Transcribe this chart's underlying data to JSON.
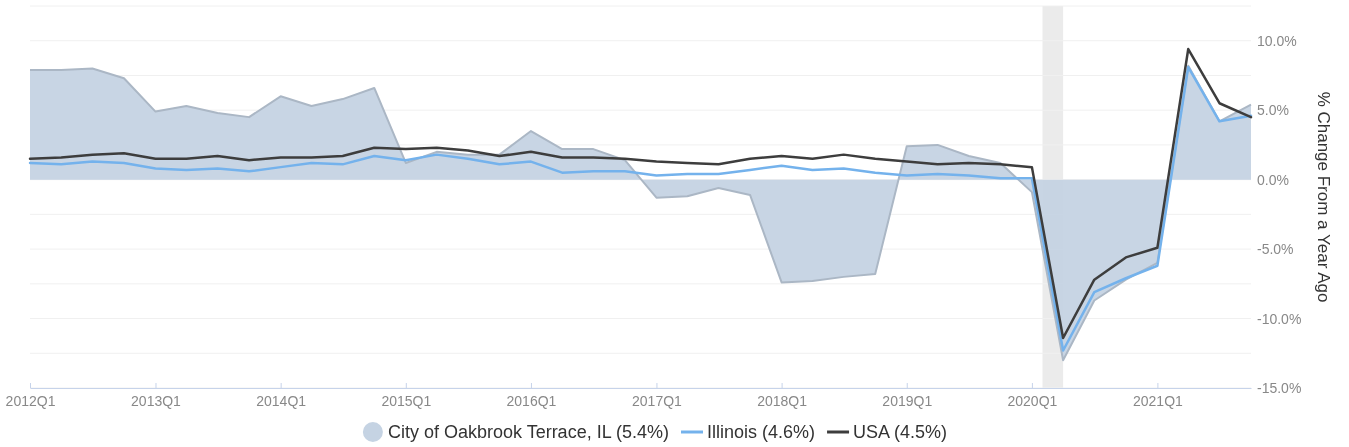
{
  "chart_data": {
    "type": "line",
    "ylabel": "% Change From a Year Ago",
    "x": [
      "2012-01",
      "2012-04",
      "2012-07",
      "2012-10",
      "2013-01",
      "2013-04",
      "2013-07",
      "2013-10",
      "2014-01",
      "2014-04",
      "2014-07",
      "2014-10",
      "2015-01",
      "2015-04",
      "2015-07",
      "2015-10",
      "2016-01",
      "2016-04",
      "2016-07",
      "2016-10",
      "2017-01",
      "2017-04",
      "2017-07",
      "2017-10",
      "2018-01",
      "2018-04",
      "2018-07",
      "2018-10",
      "2019-01",
      "2019-04",
      "2019-07",
      "2019-10",
      "2020-01",
      "2020-04",
      "2020-07",
      "2020-10",
      "2021-01",
      "2021-04",
      "2021-07",
      "2021-10"
    ],
    "series": [
      {
        "name": "City of Oakbrook Terrace, IL (5.4%)",
        "type": "area",
        "color": "#c5d3e3",
        "values": [
          7.9,
          7.9,
          8.0,
          7.3,
          4.9,
          5.3,
          4.8,
          4.5,
          6.0,
          5.3,
          5.8,
          6.6,
          1.2,
          2.0,
          1.8,
          1.8,
          3.5,
          2.2,
          2.2,
          1.4,
          -1.3,
          -1.2,
          -0.6,
          -1.1,
          -7.4,
          -7.3,
          -7.0,
          -6.8,
          2.4,
          2.5,
          1.7,
          1.2,
          -0.9,
          -13.0,
          -8.7,
          -7.2,
          -6.0,
          8.2,
          4.2,
          5.4
        ]
      },
      {
        "name": "Illinois (4.6%)",
        "color": "#74b2ec",
        "values": [
          1.2,
          1.1,
          1.3,
          1.2,
          0.8,
          0.7,
          0.8,
          0.6,
          0.9,
          1.2,
          1.1,
          1.7,
          1.4,
          1.8,
          1.5,
          1.1,
          1.3,
          0.5,
          0.6,
          0.6,
          0.3,
          0.4,
          0.4,
          0.7,
          1.0,
          0.7,
          0.8,
          0.5,
          0.3,
          0.4,
          0.3,
          0.1,
          0.1,
          -12.3,
          -8.1,
          -7.1,
          -6.2,
          8.1,
          4.2,
          4.6
        ]
      },
      {
        "name": "USA (4.5%)",
        "color": "#3d3d3d",
        "values": [
          1.5,
          1.6,
          1.8,
          1.9,
          1.5,
          1.5,
          1.7,
          1.4,
          1.6,
          1.6,
          1.7,
          2.3,
          2.2,
          2.3,
          2.1,
          1.7,
          2.0,
          1.6,
          1.6,
          1.5,
          1.3,
          1.2,
          1.1,
          1.5,
          1.7,
          1.5,
          1.8,
          1.5,
          1.3,
          1.1,
          1.2,
          1.1,
          0.9,
          -11.4,
          -7.2,
          -5.6,
          -4.9,
          9.4,
          5.5,
          4.5
        ]
      }
    ],
    "xlim": [
      "2012-01",
      "2021-10"
    ],
    "xticks": [
      {
        "value": "2012-01",
        "label": "2012Q1"
      },
      {
        "value": "2013-01",
        "label": "2013Q1"
      },
      {
        "value": "2014-01",
        "label": "2014Q1"
      },
      {
        "value": "2015-01",
        "label": "2015Q1"
      },
      {
        "value": "2016-01",
        "label": "2016Q1"
      },
      {
        "value": "2017-01",
        "label": "2017Q1"
      },
      {
        "value": "2018-01",
        "label": "2018Q1"
      },
      {
        "value": "2019-01",
        "label": "2019Q1"
      },
      {
        "value": "2020-01",
        "label": "2020Q1"
      },
      {
        "value": "2021-01",
        "label": "2021Q1"
      }
    ],
    "ylim": [
      -15,
      12.5
    ],
    "yticks": [
      {
        "value": -15,
        "label": "-15.0%"
      },
      {
        "value": -12.5,
        "label": null
      },
      {
        "value": -10,
        "label": "-10.0%"
      },
      {
        "value": -7.5,
        "label": null
      },
      {
        "value": -5,
        "label": "-5.0%"
      },
      {
        "value": -2.5,
        "label": null
      },
      {
        "value": 0,
        "label": "0.0%"
      },
      {
        "value": 2.5,
        "label": null
      },
      {
        "value": 5,
        "label": "5.0%"
      },
      {
        "value": 7.5,
        "label": null
      },
      {
        "value": 10,
        "label": "10.0%"
      },
      {
        "value": 12.5,
        "label": null
      }
    ],
    "bands": [
      {
        "axis": "x",
        "from": "2020-02",
        "to": "2020-04",
        "color": "#ebebeb"
      }
    ],
    "grid": "y",
    "legend": "bottom",
    "marker": "none"
  }
}
